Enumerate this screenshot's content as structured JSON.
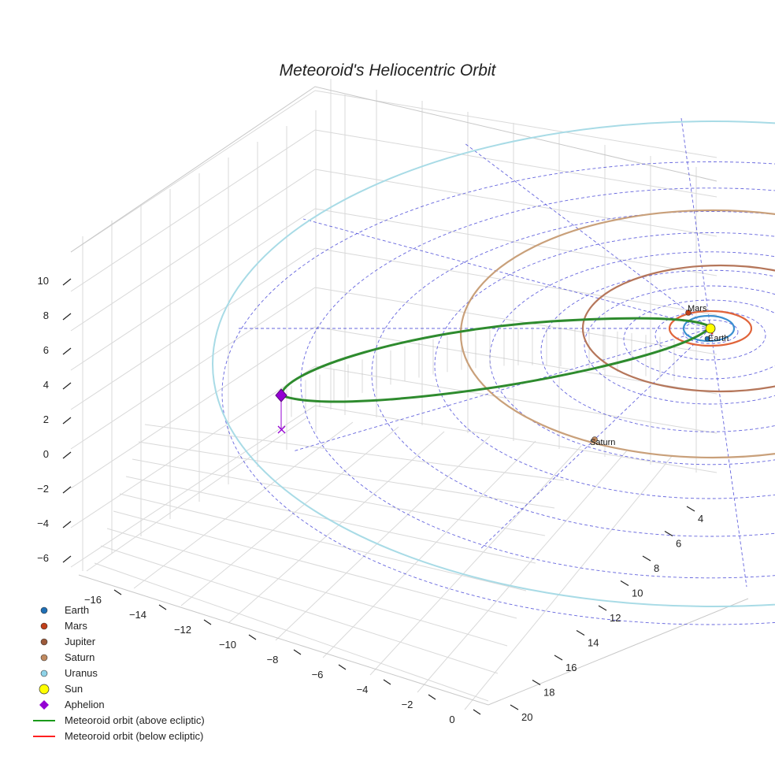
{
  "chart_data": {
    "type": "3d-orbit",
    "title": "Meteoroid's Heliocentric Orbit",
    "axes": {
      "x_ticks": [
        "−16",
        "−14",
        "−12",
        "−10",
        "−8",
        "−6",
        "−4",
        "−2",
        "0"
      ],
      "y_ticks": [
        "4",
        "6",
        "8",
        "10",
        "12",
        "14",
        "16",
        "18",
        "20"
      ],
      "z_ticks": [
        "10",
        "8",
        "6",
        "4",
        "2",
        "0",
        "−2",
        "−4",
        "−6"
      ]
    },
    "grid": true,
    "ecliptic_grid": {
      "style": "dashed",
      "color": "#4a4ad8"
    },
    "planet_orbits": [
      {
        "name": "Earth",
        "color": "#3a8fd0"
      },
      {
        "name": "Mars",
        "color": "#e0643a"
      },
      {
        "name": "Jupiter",
        "color": "#b5765a"
      },
      {
        "name": "Saturn",
        "color": "#c9a07a"
      },
      {
        "name": "Uranus",
        "color": "#a8dbe6"
      }
    ],
    "point_labels": {
      "mars": "Mars",
      "earth": "Earth",
      "saturn": "Saturn"
    },
    "meteoroid_orbit": {
      "above_color": "#2e8b2e",
      "below_color": "#e02020"
    },
    "aphelion": {
      "color": "#9400d3"
    },
    "legend": {
      "placement": "bottom-left",
      "entries": [
        {
          "label": "Earth",
          "marker": "circle",
          "color": "#1f6fb5"
        },
        {
          "label": "Mars",
          "marker": "circle",
          "color": "#c0401a"
        },
        {
          "label": "Jupiter",
          "marker": "circle",
          "color": "#9c5a3a"
        },
        {
          "label": "Saturn",
          "marker": "circle",
          "color": "#c08a60"
        },
        {
          "label": "Uranus",
          "marker": "circle",
          "color": "#8fd3e8"
        },
        {
          "label": "Sun",
          "marker": "circle-large",
          "color": "#ffff00"
        },
        {
          "label": "Aphelion",
          "marker": "diamond",
          "color": "#9400d3"
        },
        {
          "label": "Meteoroid orbit (above ecliptic)",
          "marker": "line",
          "color": "#1a9a1a"
        },
        {
          "label": "Meteoroid orbit (below ecliptic)",
          "marker": "line",
          "color": "#ff2020"
        }
      ]
    }
  }
}
